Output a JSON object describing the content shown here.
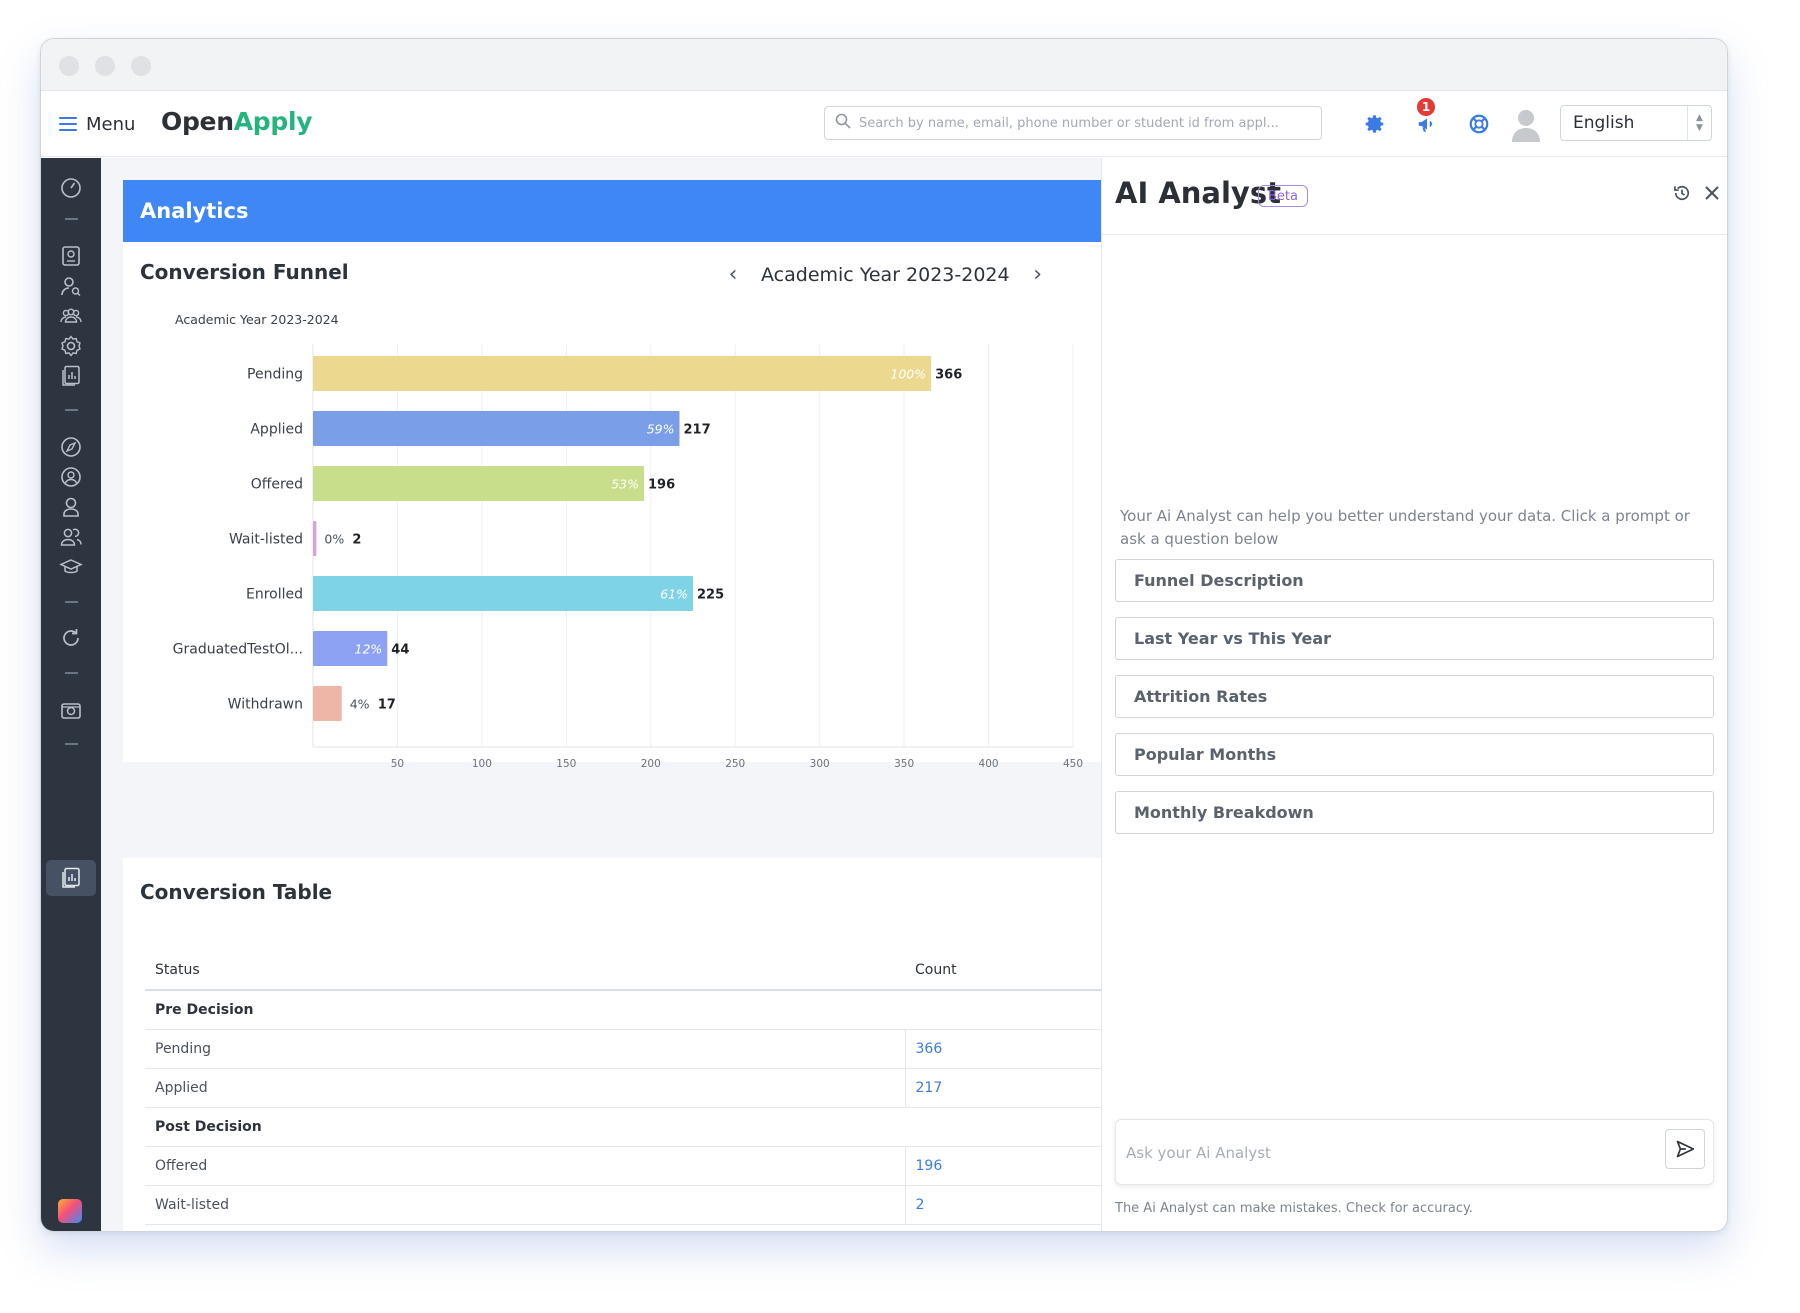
{
  "app": {
    "menu_label": "Menu",
    "logo_part1": "Open",
    "logo_part2": "Apply",
    "search_placeholder": "Search by name, email, phone number or student id from appl...",
    "notification_count": "1",
    "language": "English"
  },
  "main": {
    "header": "Analytics",
    "funnel": {
      "title": "Conversion Funnel",
      "year": "Academic Year 2023-2024"
    },
    "table": {
      "title": "Conversion Table",
      "columns": [
        "Status",
        "Count"
      ],
      "rows": [
        {
          "label": "Pre Decision",
          "count": "",
          "group": true
        },
        {
          "label": "Pending",
          "count": "366",
          "group": false
        },
        {
          "label": "Applied",
          "count": "217",
          "group": false
        },
        {
          "label": "Post Decision",
          "count": "",
          "group": true
        },
        {
          "label": "Offered",
          "count": "196",
          "group": false
        },
        {
          "label": "Wait-listed",
          "count": "2",
          "group": false
        }
      ]
    }
  },
  "chart_data": {
    "type": "bar",
    "orientation": "horizontal",
    "title": "Academic Year 2023-2024",
    "categories": [
      "Pending",
      "Applied",
      "Offered",
      "Wait-listed",
      "Enrolled",
      "GraduatedTestOl...",
      "Withdrawn"
    ],
    "values": [
      366,
      217,
      196,
      2,
      225,
      44,
      17
    ],
    "percent_labels": [
      "100%",
      "59%",
      "53%",
      "0%",
      "61%",
      "12%",
      "4%"
    ],
    "colors": [
      "#ecd98f",
      "#7a9ee8",
      "#c9de8a",
      "#d9a0e0",
      "#7fd3e6",
      "#8da2f2",
      "#edb6a6"
    ],
    "x_ticks": [
      50,
      100,
      150,
      200,
      250,
      300,
      350,
      400,
      450
    ],
    "xlim": [
      0,
      450
    ],
    "grid": true
  },
  "ai": {
    "title": "AI Analyst",
    "beta": "Beta",
    "intro": "Your Ai Analyst can help you better understand your data. Click a prompt or ask a question below",
    "prompts": [
      "Funnel Description",
      "Last Year vs This Year",
      "Attrition Rates",
      "Popular Months",
      "Monthly Breakdown"
    ],
    "ask_placeholder": "Ask your Ai Analyst",
    "disclaimer": "The Ai Analyst can make mistakes. Check for accuracy."
  }
}
